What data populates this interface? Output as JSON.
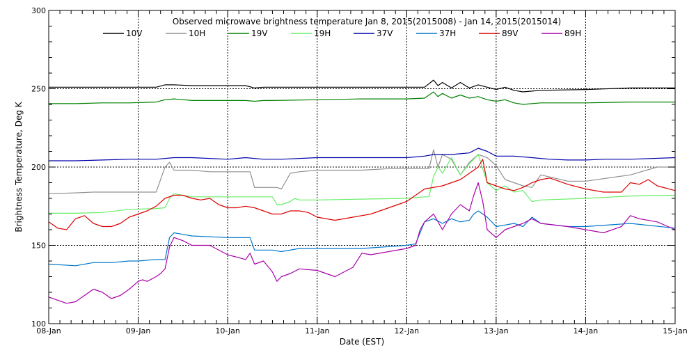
{
  "chart_data": {
    "type": "line",
    "title": "Observed microwave brightness temperature Jan  8, 2015(2015008) - Jan 14, 2015(2015014)",
    "xlabel": "Date (EST)",
    "ylabel": "Brightness Temperature, Deg K",
    "ylim": [
      100,
      300
    ],
    "yticks": [
      "100",
      "150",
      "200",
      "250",
      "300"
    ],
    "xlim": [
      0,
      7
    ],
    "xticks": [
      "08-Jan",
      "09-Jan",
      "10-Jan",
      "11-Jan",
      "12-Jan",
      "13-Jan",
      "14-Jan",
      "15-Jan"
    ],
    "grid": true,
    "legend_position": "top",
    "series": [
      {
        "name": "10V",
        "color": "#000000",
        "x": [
          0,
          0.3,
          0.6,
          0.9,
          1.2,
          1.3,
          1.4,
          1.6,
          2.0,
          2.2,
          2.3,
          2.4,
          2.5,
          3.0,
          3.5,
          4.0,
          4.2,
          4.3,
          4.35,
          4.4,
          4.5,
          4.6,
          4.7,
          4.8,
          4.9,
          5.0,
          5.1,
          5.2,
          5.3,
          5.4,
          5.5,
          6.0,
          6.5,
          7.0
        ],
        "y": [
          251,
          251,
          251,
          251,
          251,
          252.5,
          252.5,
          252,
          252,
          252,
          250.5,
          251,
          251,
          251,
          251,
          251,
          251,
          255.5,
          252,
          254,
          250.5,
          254,
          250.5,
          252.5,
          251,
          249.5,
          251,
          249,
          248,
          248.5,
          249,
          249.5,
          250.5,
          250.5
        ]
      },
      {
        "name": "10H",
        "color": "#909090",
        "x": [
          0,
          0.3,
          0.5,
          0.7,
          0.9,
          1.2,
          1.3,
          1.35,
          1.4,
          1.5,
          1.6,
          1.8,
          2.0,
          2.2,
          2.25,
          2.3,
          2.5,
          2.55,
          2.6,
          2.7,
          2.8,
          3.0,
          3.5,
          3.8,
          4.0,
          4.2,
          4.25,
          4.3,
          4.35,
          4.4,
          4.5,
          4.6,
          4.7,
          4.8,
          4.9,
          5.0,
          5.1,
          5.2,
          5.3,
          5.4,
          5.5,
          5.8,
          6.0,
          6.5,
          6.8,
          7.0
        ],
        "y": [
          183,
          183.5,
          184,
          184,
          184,
          184,
          200,
          203,
          198,
          198,
          198,
          197,
          197,
          197,
          197,
          187,
          187,
          187,
          186,
          196,
          197,
          198,
          198,
          199,
          199,
          199,
          199,
          211,
          200,
          208,
          205,
          195,
          203,
          208,
          206,
          201,
          192,
          190,
          188,
          187,
          195,
          191,
          191,
          195,
          200,
          200
        ]
      },
      {
        "name": "19V",
        "color": "#008000",
        "x": [
          0,
          0.3,
          0.6,
          0.9,
          1.2,
          1.3,
          1.4,
          1.6,
          2.0,
          2.2,
          2.3,
          2.4,
          2.5,
          3.0,
          3.5,
          4.0,
          4.2,
          4.3,
          4.35,
          4.4,
          4.5,
          4.6,
          4.7,
          4.8,
          4.9,
          5.0,
          5.1,
          5.2,
          5.3,
          5.4,
          5.5,
          6.0,
          6.5,
          7.0
        ],
        "y": [
          240.5,
          240.5,
          241,
          241,
          241.5,
          243,
          243.5,
          242.5,
          242.5,
          242.5,
          242,
          242.5,
          242.5,
          243,
          243.5,
          243.5,
          244,
          248,
          245,
          247,
          244,
          246,
          244,
          245,
          243,
          242,
          243,
          241,
          240,
          240.5,
          241,
          241,
          241.5,
          241.5
        ]
      },
      {
        "name": "19H",
        "color": "#66ee66",
        "x": [
          0,
          0.3,
          0.6,
          0.9,
          1.2,
          1.3,
          1.35,
          1.4,
          1.6,
          2.0,
          2.2,
          2.3,
          2.5,
          2.55,
          2.6,
          2.7,
          2.75,
          2.8,
          3.0,
          3.5,
          4.0,
          4.2,
          4.25,
          4.3,
          4.35,
          4.4,
          4.5,
          4.6,
          4.7,
          4.8,
          4.9,
          5.0,
          5.1,
          5.2,
          5.3,
          5.4,
          5.5,
          6.0,
          6.5,
          7.0
        ],
        "y": [
          170.5,
          170.5,
          171,
          173,
          173.5,
          174,
          180,
          183,
          181,
          181,
          181,
          181,
          181,
          176,
          176,
          178,
          180,
          179,
          179,
          179.5,
          180,
          181,
          181,
          194,
          200,
          196,
          206,
          195,
          202,
          208,
          190,
          185,
          188,
          184,
          185,
          178,
          179,
          180,
          181.5,
          182
        ]
      },
      {
        "name": "37V",
        "color": "#0000aa",
        "x": [
          0,
          0.3,
          0.6,
          0.9,
          1.2,
          1.4,
          1.6,
          2.0,
          2.2,
          2.4,
          2.6,
          3.0,
          3.5,
          4.0,
          4.2,
          4.3,
          4.5,
          4.7,
          4.8,
          4.9,
          5.0,
          5.2,
          5.4,
          5.6,
          5.8,
          6.0,
          6.2,
          6.5,
          7.0
        ],
        "y": [
          204,
          204,
          204.5,
          205,
          205,
          206,
          206,
          205,
          206,
          205,
          205,
          206,
          206,
          206,
          207,
          208,
          208,
          209,
          212,
          210,
          207,
          207,
          206,
          205,
          204.5,
          204.5,
          205,
          205,
          206
        ]
      },
      {
        "name": "37H",
        "color": "#0077cc",
        "x": [
          0,
          0.3,
          0.5,
          0.7,
          0.9,
          1.0,
          1.2,
          1.3,
          1.35,
          1.4,
          1.6,
          2.0,
          2.2,
          2.25,
          2.3,
          2.5,
          2.6,
          2.8,
          3.0,
          3.5,
          4.0,
          4.1,
          4.15,
          4.2,
          4.3,
          4.4,
          4.5,
          4.6,
          4.7,
          4.75,
          4.8,
          4.9,
          5.0,
          5.1,
          5.2,
          5.3,
          5.4,
          5.5,
          5.8,
          6.0,
          6.5,
          7.0
        ],
        "y": [
          138,
          137,
          139,
          139,
          140,
          140,
          141,
          141,
          155,
          158,
          156,
          155,
          155,
          155,
          147,
          147,
          146,
          148,
          148,
          148,
          150,
          151,
          158,
          165,
          167,
          164,
          167,
          165,
          166,
          170,
          172,
          168,
          162,
          163,
          164,
          162,
          168,
          164,
          162,
          162,
          164,
          161
        ]
      },
      {
        "name": "89V",
        "color": "#dd0000",
        "x": [
          0,
          0.1,
          0.2,
          0.3,
          0.4,
          0.5,
          0.6,
          0.7,
          0.8,
          0.9,
          1.0,
          1.1,
          1.2,
          1.3,
          1.4,
          1.5,
          1.6,
          1.7,
          1.8,
          1.9,
          2.0,
          2.1,
          2.2,
          2.3,
          2.4,
          2.5,
          2.6,
          2.7,
          2.8,
          2.9,
          3.0,
          3.2,
          3.4,
          3.6,
          3.8,
          4.0,
          4.2,
          4.4,
          4.5,
          4.6,
          4.7,
          4.8,
          4.85,
          4.9,
          5.0,
          5.1,
          5.2,
          5.3,
          5.4,
          5.5,
          5.6,
          5.8,
          6.0,
          6.2,
          6.4,
          6.5,
          6.6,
          6.7,
          6.8,
          7.0
        ],
        "y": [
          165,
          161,
          160,
          167,
          169,
          164,
          162,
          162,
          164,
          168,
          170,
          172,
          175,
          180,
          182,
          182,
          180,
          179,
          180,
          176,
          174,
          174,
          175,
          174,
          172,
          170,
          170,
          172,
          172,
          171,
          168,
          166,
          168,
          170,
          174,
          178,
          186,
          188,
          190,
          192,
          196,
          200,
          205,
          190,
          188,
          186,
          185,
          187,
          190,
          192,
          193,
          189,
          186,
          184,
          184,
          190,
          189,
          192,
          188,
          185
        ]
      },
      {
        "name": "89H",
        "color": "#aa00aa",
        "x": [
          0,
          0.2,
          0.3,
          0.4,
          0.5,
          0.6,
          0.7,
          0.8,
          0.9,
          1.0,
          1.05,
          1.1,
          1.2,
          1.25,
          1.3,
          1.35,
          1.4,
          1.5,
          1.6,
          1.8,
          2.0,
          2.2,
          2.25,
          2.3,
          2.4,
          2.5,
          2.55,
          2.6,
          2.7,
          2.8,
          3.0,
          3.2,
          3.4,
          3.5,
          3.6,
          3.8,
          4.0,
          4.1,
          4.15,
          4.2,
          4.3,
          4.4,
          4.5,
          4.6,
          4.7,
          4.75,
          4.8,
          4.85,
          4.9,
          5.0,
          5.1,
          5.2,
          5.3,
          5.4,
          5.5,
          5.8,
          6.0,
          6.2,
          6.4,
          6.5,
          6.6,
          6.8,
          7.0
        ],
        "y": [
          117,
          113,
          114,
          118,
          122,
          120,
          116,
          118,
          122,
          127,
          128,
          127,
          130,
          132,
          135,
          149,
          155,
          153,
          150,
          150,
          144,
          141,
          145,
          138,
          140,
          133,
          127,
          130,
          132,
          135,
          134,
          130,
          136,
          145,
          144,
          146,
          148,
          150,
          160,
          165,
          170,
          160,
          170,
          176,
          172,
          182,
          190,
          178,
          160,
          155,
          160,
          162,
          164,
          167,
          164,
          162,
          160,
          158,
          162,
          169,
          167,
          165,
          160
        ]
      }
    ]
  }
}
